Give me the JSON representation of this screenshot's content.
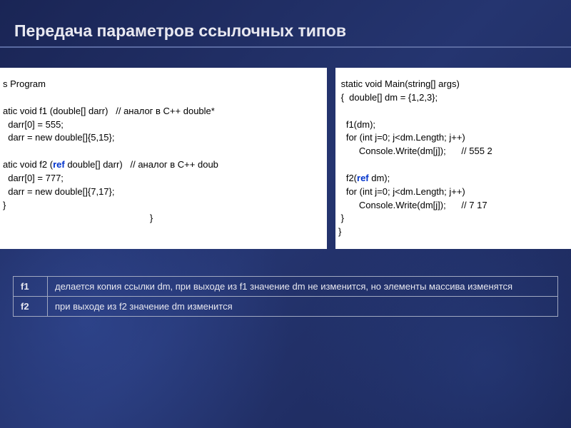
{
  "slide": {
    "title": "Передача параметров ссылочных типов",
    "background_base": "#1a2555",
    "title_color": "#e8e8f0",
    "title_fontsize": 23,
    "divider_color": "#5a6aa0"
  },
  "code": {
    "box_bg": "#ffffff",
    "text_color": "#000000",
    "keyword_color": "#0033cc",
    "fontsize": 13,
    "left": {
      "l1": "s Program",
      "l2": "",
      "l3": "atic void f1 (double[] darr)   // аналог в С++ double*",
      "l4": "  darr[0] = 555;",
      "l5": "  darr = new double[]{5,15};",
      "l6": "",
      "l7a": "atic void f2 (",
      "l7_kw": "ref",
      "l7b": " double[] darr)   // аналог в С++ doub",
      "l8": "  darr[0] = 777;",
      "l9": "  darr = new double[]{7,17};",
      "l10": "}",
      "l11": "                                                         }"
    },
    "right": {
      "r1": " static void Main(string[] args)",
      "r2": " {  double[] dm = {1,2,3};",
      "r3": "",
      "r4": "   f1(dm);",
      "r5": "   for (int j=0; j<dm.Length; j++)",
      "r6": "        Console.Write(dm[j]);      // 555 2",
      "r7": "",
      "r8a": "   f2(",
      "r8_kw": "ref",
      "r8b": " dm);",
      "r9": "   for (int j=0; j<dm.Length; j++)",
      "r10": "        Console.Write(dm[j]);      // 7 17",
      "r11": " }",
      "r12": "}"
    }
  },
  "table": {
    "border_color": "#a0a8c0",
    "text_color": "#e8e8f0",
    "fontsize": 13,
    "rows": [
      {
        "label": "f1",
        "desc": "делается  копия ссылки dm, при выходе из f1 значение dm не изменится, но элементы массива изменятся"
      },
      {
        "label": "f2",
        "desc": "при выходе из f2 значение dm  изменится"
      }
    ]
  }
}
